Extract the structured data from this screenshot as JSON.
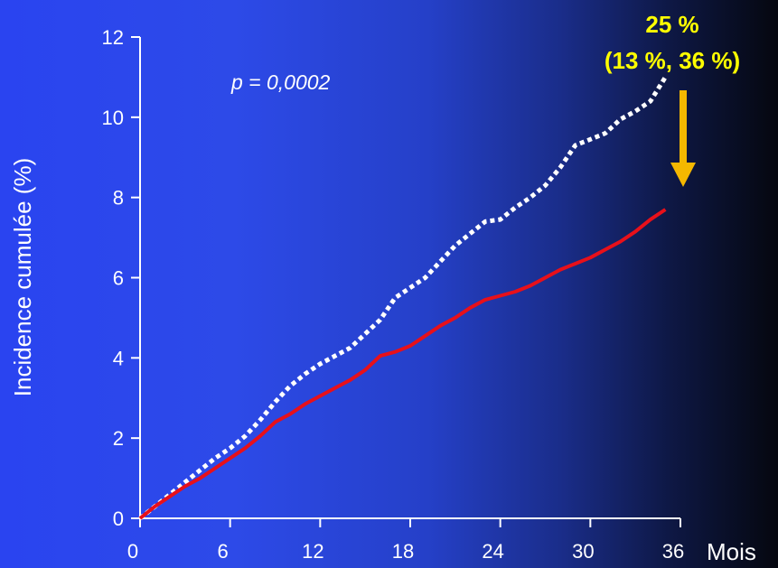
{
  "chart_data": {
    "type": "line",
    "xlabel": "Mois",
    "ylabel": "Incidence cumulée (%)",
    "xlim": [
      0,
      36
    ],
    "ylim": [
      0,
      12
    ],
    "x_ticks": [
      "0",
      "6",
      "12",
      "18",
      "24",
      "30",
      "36"
    ],
    "y_ticks": [
      "0",
      "2",
      "4",
      "6",
      "8",
      "10",
      "12"
    ],
    "grid": false,
    "annotations": {
      "p_value": "p = 0,0002",
      "reduction": "25 %",
      "ci": "(13 %, 36 %)"
    },
    "colors": {
      "dotted_series": "#ffffff",
      "solid_series": "#e8101a",
      "annotation": "#ffff00",
      "arrow": "#f5b800"
    },
    "series": [
      {
        "style": "dotted",
        "x": [
          0,
          1,
          2,
          3,
          4,
          5,
          6,
          7,
          8,
          9,
          10,
          11,
          12,
          13,
          14,
          15,
          16,
          17,
          18,
          19,
          20,
          21,
          22,
          23,
          24,
          25,
          26,
          27,
          28,
          29,
          30,
          31,
          32,
          33,
          34,
          35
        ],
        "y": [
          0,
          0.3,
          0.6,
          0.9,
          1.2,
          1.5,
          1.75,
          2.05,
          2.45,
          2.9,
          3.3,
          3.6,
          3.85,
          4.05,
          4.25,
          4.6,
          4.95,
          5.5,
          5.75,
          6.0,
          6.4,
          6.8,
          7.1,
          7.4,
          7.45,
          7.75,
          8.0,
          8.3,
          8.75,
          9.3,
          9.45,
          9.6,
          9.95,
          10.15,
          10.4,
          11.0
        ]
      },
      {
        "style": "solid",
        "x": [
          0,
          1,
          2,
          3,
          4,
          5,
          6,
          7,
          8,
          9,
          10,
          11,
          12,
          13,
          14,
          15,
          16,
          17,
          18,
          19,
          20,
          21,
          22,
          23,
          24,
          25,
          26,
          27,
          28,
          29,
          30,
          31,
          32,
          33,
          34,
          35
        ],
        "y": [
          0,
          0.3,
          0.55,
          0.8,
          1.0,
          1.25,
          1.5,
          1.75,
          2.05,
          2.4,
          2.6,
          2.85,
          3.05,
          3.25,
          3.45,
          3.7,
          4.05,
          4.15,
          4.3,
          4.55,
          4.8,
          5.0,
          5.25,
          5.45,
          5.55,
          5.65,
          5.8,
          6.0,
          6.2,
          6.35,
          6.5,
          6.7,
          6.9,
          7.15,
          7.45,
          7.7
        ]
      }
    ]
  }
}
